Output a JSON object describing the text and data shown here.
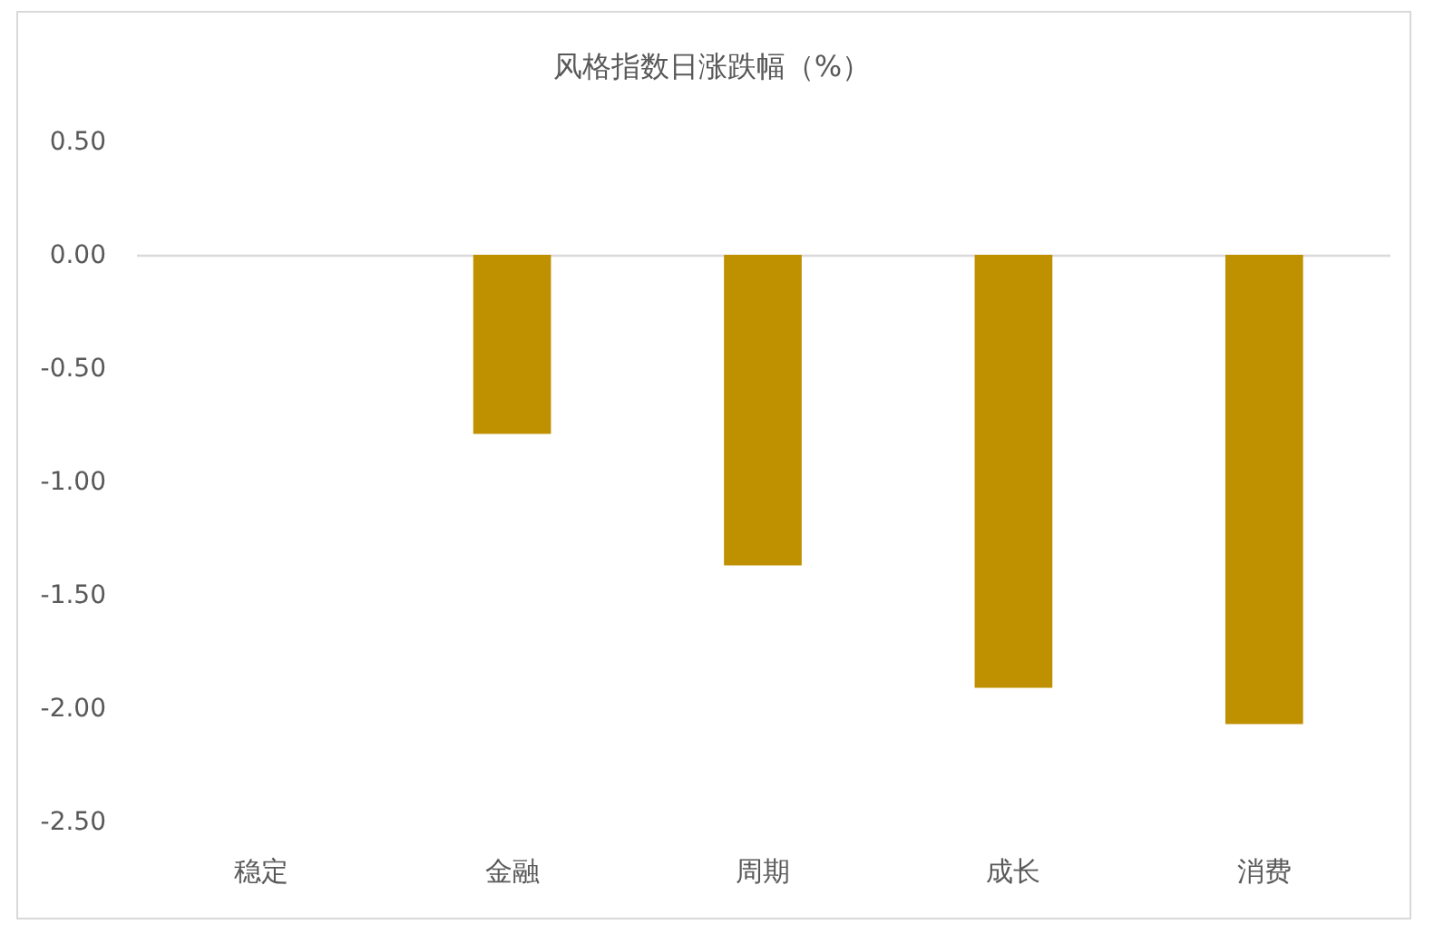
{
  "chart_data": {
    "type": "bar",
    "title": "风格指数日涨跌幅（%）",
    "categories": [
      "稳定",
      "金融",
      "周期",
      "成长",
      "消费"
    ],
    "values": [
      0,
      -0.79,
      -1.37,
      -1.91,
      -2.07
    ],
    "color": "#bf9000",
    "ylim": [
      -2.5,
      0.5
    ],
    "yticks": [
      {
        "value": 0.5,
        "label": "0.50"
      },
      {
        "value": 0,
        "label": "0.00"
      },
      {
        "value": -0.5,
        "label": "-0.50"
      },
      {
        "value": -1,
        "label": "-1.00"
      },
      {
        "value": -1.5,
        "label": "-1.50"
      },
      {
        "value": -2,
        "label": "-2.00"
      },
      {
        "value": -2.5,
        "label": "-2.50"
      }
    ]
  }
}
